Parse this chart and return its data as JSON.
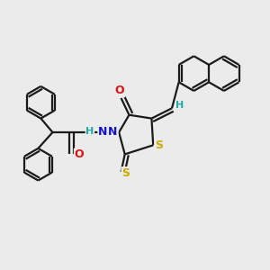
{
  "bg_color": "#ebebeb",
  "bond_color": "#1a1a1a",
  "bond_width": 1.6,
  "atom_colors": {
    "N": "#1414cc",
    "O": "#dd1111",
    "S": "#ccaa00",
    "H": "#22aaaa",
    "C": "#1a1a1a"
  },
  "font_size_atom": 9
}
